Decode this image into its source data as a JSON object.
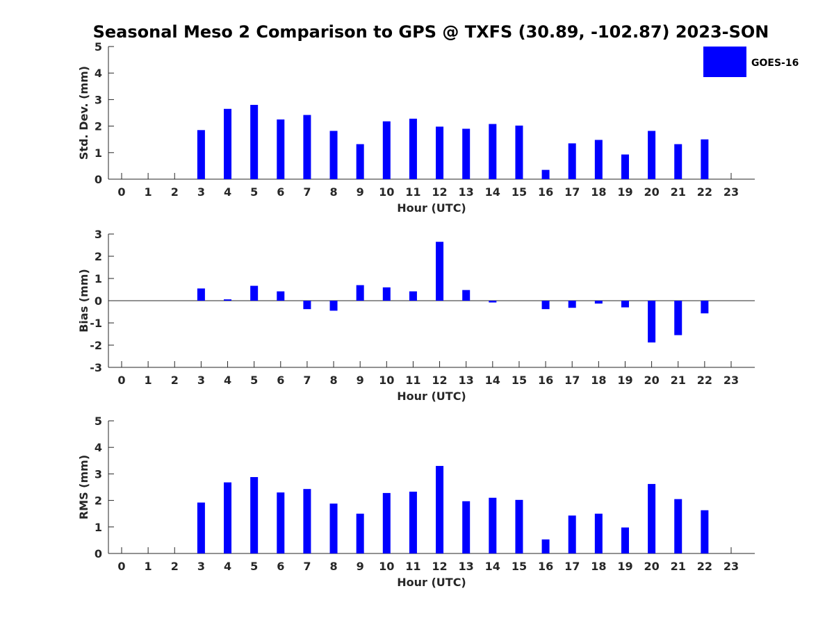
{
  "title": "Seasonal Meso 2 Comparison to GPS @ TXFS (30.89, -102.87) 2023-SON",
  "legend": {
    "label": "GOES-16",
    "color": "#0000ff"
  },
  "chart_data": [
    {
      "type": "bar",
      "name": "std-dev",
      "ylabel": "Std. Dev. (mm)",
      "xlabel": "Hour (UTC)",
      "categories": [
        "0",
        "1",
        "2",
        "3",
        "4",
        "5",
        "6",
        "7",
        "8",
        "9",
        "10",
        "11",
        "12",
        "13",
        "14",
        "15",
        "16",
        "17",
        "18",
        "19",
        "20",
        "21",
        "22",
        "23"
      ],
      "series": [
        {
          "name": "GOES-16",
          "values": [
            null,
            null,
            null,
            1.85,
            2.65,
            2.8,
            2.25,
            2.42,
            1.82,
            1.32,
            2.18,
            2.28,
            1.98,
            1.9,
            2.08,
            2.02,
            0.35,
            1.35,
            1.48,
            0.93,
            1.82,
            1.32,
            1.5,
            null
          ]
        }
      ],
      "ylim": [
        0,
        5
      ],
      "yticks": [
        "0",
        "1",
        "2",
        "3",
        "4",
        "5"
      ],
      "zero_line": false,
      "color": "#0000ff"
    },
    {
      "type": "bar",
      "name": "bias",
      "ylabel": "Bias (mm)",
      "xlabel": "Hour (UTC)",
      "categories": [
        "0",
        "1",
        "2",
        "3",
        "4",
        "5",
        "6",
        "7",
        "8",
        "9",
        "10",
        "11",
        "12",
        "13",
        "14",
        "15",
        "16",
        "17",
        "18",
        "19",
        "20",
        "21",
        "22",
        "23"
      ],
      "series": [
        {
          "name": "GOES-16",
          "values": [
            null,
            null,
            null,
            0.55,
            0.06,
            0.67,
            0.42,
            -0.38,
            -0.45,
            0.7,
            0.6,
            0.42,
            2.65,
            0.48,
            -0.08,
            null,
            -0.38,
            -0.32,
            -0.13,
            -0.3,
            -1.88,
            -1.55,
            -0.57,
            null
          ]
        }
      ],
      "ylim": [
        -3,
        3
      ],
      "yticks": [
        "-3",
        "-2",
        "-1",
        "0",
        "1",
        "2",
        "3"
      ],
      "zero_line": true,
      "color": "#0000ff"
    },
    {
      "type": "bar",
      "name": "rms",
      "ylabel": "RMS (mm)",
      "xlabel": "Hour (UTC)",
      "categories": [
        "0",
        "1",
        "2",
        "3",
        "4",
        "5",
        "6",
        "7",
        "8",
        "9",
        "10",
        "11",
        "12",
        "13",
        "14",
        "15",
        "16",
        "17",
        "18",
        "19",
        "20",
        "21",
        "22",
        "23"
      ],
      "series": [
        {
          "name": "GOES-16",
          "values": [
            null,
            null,
            null,
            1.92,
            2.68,
            2.88,
            2.3,
            2.43,
            1.88,
            1.5,
            2.28,
            2.33,
            3.3,
            1.97,
            2.1,
            2.02,
            0.53,
            1.43,
            1.5,
            0.98,
            2.62,
            2.05,
            1.63,
            null
          ]
        }
      ],
      "ylim": [
        0,
        5
      ],
      "yticks": [
        "0",
        "1",
        "2",
        "3",
        "4",
        "5"
      ],
      "zero_line": false,
      "color": "#0000ff"
    }
  ]
}
